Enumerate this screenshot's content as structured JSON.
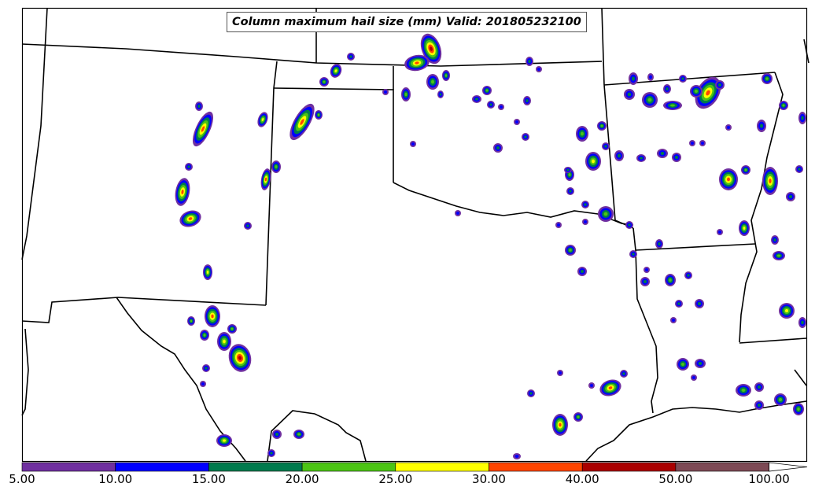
{
  "map": {
    "title": "Column maximum hail size (mm) Valid: 201805232100"
  },
  "legend": {
    "bins": [
      {
        "from": "5.00",
        "to": "10.00",
        "color": "#7030a0"
      },
      {
        "from": "10.00",
        "to": "15.00",
        "color": "#0000ff"
      },
      {
        "from": "15.00",
        "to": "20.00",
        "color": "#007a4d"
      },
      {
        "from": "20.00",
        "to": "25.00",
        "color": "#4cc414"
      },
      {
        "from": "25.00",
        "to": "30.00",
        "color": "#ffff00"
      },
      {
        "from": "30.00",
        "to": "40.00",
        "color": "#ff4500"
      },
      {
        "from": "40.00",
        "to": "50.00",
        "color": "#aa0000"
      },
      {
        "from": "50.00",
        "to": "100.00",
        "color": "#7d4a55"
      }
    ],
    "tick_labels": [
      "5.00",
      "10.00",
      "15.00",
      "20.00",
      "25.00",
      "30.00",
      "40.00",
      "50.00",
      "100.00"
    ],
    "extend": "max"
  }
}
